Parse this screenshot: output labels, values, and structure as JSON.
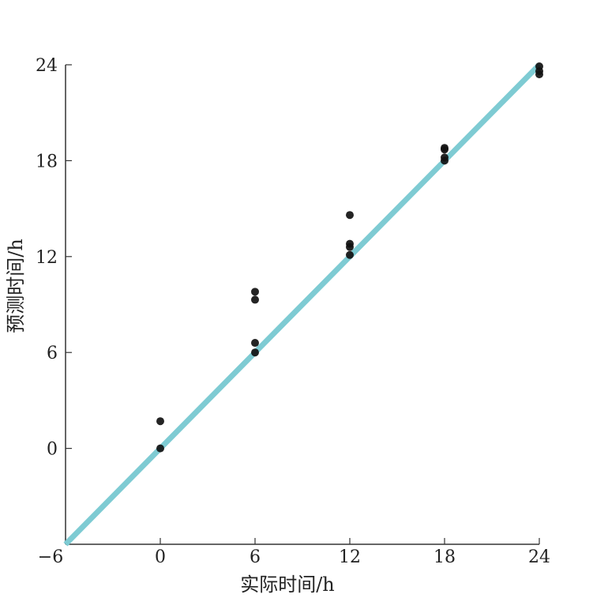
{
  "chart_data": {
    "type": "scatter",
    "title": "",
    "xlabel": "实际时间/h",
    "ylabel": "预测时间/h",
    "xlim": [
      -6,
      24
    ],
    "ylim": [
      -6,
      24
    ],
    "x_ticks": [
      "−6",
      "0",
      "6",
      "12",
      "18",
      "24"
    ],
    "y_ticks": [
      "0",
      "6",
      "12",
      "18",
      "24"
    ],
    "grid": false,
    "series": [
      {
        "points": [
          [
            0,
            1.7
          ],
          [
            0,
            0.0
          ],
          [
            6,
            9.8
          ],
          [
            6,
            9.3
          ],
          [
            6,
            6.6
          ],
          [
            6,
            6.0
          ],
          [
            12,
            14.6
          ],
          [
            12,
            12.8
          ],
          [
            12,
            12.6
          ],
          [
            12,
            12.1
          ],
          [
            18,
            18.8
          ],
          [
            18,
            18.7
          ],
          [
            18,
            18.2
          ],
          [
            18,
            18.0
          ],
          [
            24,
            23.9
          ],
          [
            24,
            23.6
          ],
          [
            24,
            23.4
          ]
        ],
        "color": "#111111"
      }
    ],
    "reference_line": {
      "from": [
        -6,
        -6
      ],
      "to": [
        24,
        24
      ],
      "color": "#7ecbd3"
    }
  }
}
